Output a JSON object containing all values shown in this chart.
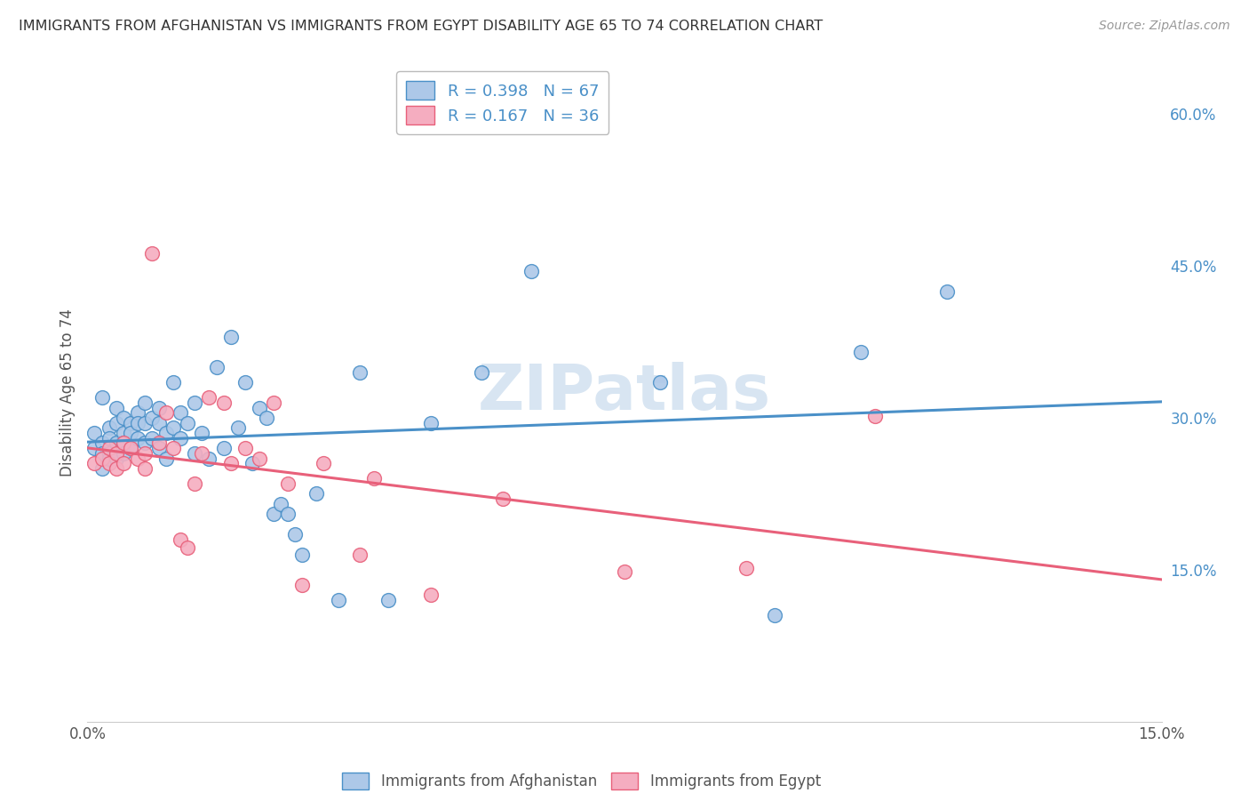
{
  "title": "IMMIGRANTS FROM AFGHANISTAN VS IMMIGRANTS FROM EGYPT DISABILITY AGE 65 TO 74 CORRELATION CHART",
  "source": "Source: ZipAtlas.com",
  "ylabel_text": "Disability Age 65 to 74",
  "xmin": 0.0,
  "xmax": 0.15,
  "ymin": 0.0,
  "ymax": 0.65,
  "ytick_right_labels": [
    "60.0%",
    "45.0%",
    "30.0%",
    "15.0%"
  ],
  "ytick_right_values": [
    0.6,
    0.45,
    0.3,
    0.15
  ],
  "afghanistan_color": "#adc8e8",
  "egypt_color": "#f5adc0",
  "afghanistan_line_color": "#4a90c8",
  "egypt_line_color": "#e8607a",
  "afghanistan_R": 0.398,
  "afghanistan_N": 67,
  "egypt_R": 0.167,
  "egypt_N": 36,
  "legend_text_color": "#4a90c8",
  "watermark": "ZIPatlas",
  "background_color": "#ffffff",
  "grid_color": "#d8d8d8",
  "afghanistan_x": [
    0.001,
    0.001,
    0.002,
    0.002,
    0.002,
    0.002,
    0.003,
    0.003,
    0.003,
    0.003,
    0.004,
    0.004,
    0.004,
    0.004,
    0.005,
    0.005,
    0.005,
    0.005,
    0.006,
    0.006,
    0.006,
    0.007,
    0.007,
    0.007,
    0.008,
    0.008,
    0.008,
    0.009,
    0.009,
    0.01,
    0.01,
    0.01,
    0.011,
    0.011,
    0.012,
    0.012,
    0.013,
    0.013,
    0.014,
    0.015,
    0.015,
    0.016,
    0.017,
    0.018,
    0.019,
    0.02,
    0.021,
    0.022,
    0.023,
    0.024,
    0.025,
    0.026,
    0.027,
    0.028,
    0.029,
    0.03,
    0.032,
    0.035,
    0.038,
    0.042,
    0.048,
    0.055,
    0.062,
    0.08,
    0.096,
    0.108,
    0.12
  ],
  "afghanistan_y": [
    0.285,
    0.27,
    0.32,
    0.275,
    0.265,
    0.25,
    0.29,
    0.28,
    0.265,
    0.26,
    0.31,
    0.295,
    0.275,
    0.26,
    0.3,
    0.285,
    0.275,
    0.265,
    0.295,
    0.285,
    0.27,
    0.305,
    0.295,
    0.28,
    0.315,
    0.295,
    0.275,
    0.3,
    0.28,
    0.31,
    0.295,
    0.27,
    0.285,
    0.26,
    0.335,
    0.29,
    0.305,
    0.28,
    0.295,
    0.315,
    0.265,
    0.285,
    0.26,
    0.35,
    0.27,
    0.38,
    0.29,
    0.335,
    0.255,
    0.31,
    0.3,
    0.205,
    0.215,
    0.205,
    0.185,
    0.165,
    0.225,
    0.12,
    0.345,
    0.12,
    0.295,
    0.345,
    0.445,
    0.335,
    0.105,
    0.365,
    0.425
  ],
  "egypt_x": [
    0.001,
    0.002,
    0.003,
    0.003,
    0.004,
    0.004,
    0.005,
    0.005,
    0.006,
    0.007,
    0.008,
    0.008,
    0.009,
    0.01,
    0.011,
    0.012,
    0.013,
    0.014,
    0.015,
    0.016,
    0.017,
    0.019,
    0.02,
    0.022,
    0.024,
    0.026,
    0.028,
    0.03,
    0.033,
    0.038,
    0.04,
    0.048,
    0.058,
    0.075,
    0.092,
    0.11
  ],
  "egypt_y": [
    0.255,
    0.26,
    0.27,
    0.255,
    0.265,
    0.25,
    0.275,
    0.255,
    0.27,
    0.26,
    0.265,
    0.25,
    0.462,
    0.275,
    0.305,
    0.27,
    0.18,
    0.172,
    0.235,
    0.265,
    0.32,
    0.315,
    0.255,
    0.27,
    0.26,
    0.315,
    0.235,
    0.135,
    0.255,
    0.165,
    0.24,
    0.125,
    0.22,
    0.148,
    0.152,
    0.302
  ]
}
